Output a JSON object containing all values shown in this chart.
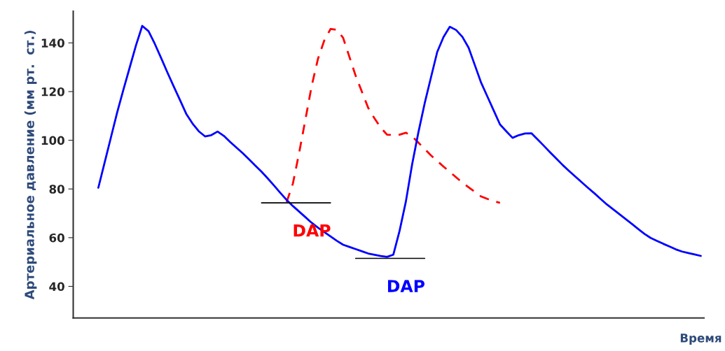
{
  "chart_data": {
    "type": "line",
    "xlabel": "Время",
    "ylabel": "Артериальное давление (мм рт.  ст.)",
    "categories": [
      null,
      null,
      null,
      null,
      null,
      null,
      null,
      null,
      null,
      null,
      null,
      null,
      null,
      null,
      null,
      null,
      null,
      null,
      null,
      null,
      null,
      null,
      null,
      null,
      null,
      null,
      null,
      null,
      null,
      null,
      null,
      null,
      null,
      null,
      null,
      null,
      null,
      null,
      null,
      null,
      null,
      null,
      null,
      null,
      null,
      null,
      null,
      null,
      null,
      null,
      null,
      null,
      null,
      null,
      null,
      null,
      null,
      null,
      null,
      null,
      null,
      null,
      null,
      null,
      null,
      null,
      null,
      null,
      null,
      null,
      null,
      null,
      null,
      null,
      null,
      null,
      null,
      null,
      null,
      null,
      null,
      null,
      null,
      null,
      null,
      null,
      null,
      null,
      null,
      null,
      null,
      null,
      null,
      null,
      null,
      null,
      null
    ],
    "ylim": [
      27,
      153
    ],
    "yticks": [
      40,
      60,
      80,
      100,
      120,
      140
    ],
    "tick_labels": "y",
    "grid": false,
    "legend": false,
    "series": [
      {
        "color": "#ff0000",
        "line_style": "dashed",
        "values": [
          null,
          null,
          null,
          null,
          null,
          null,
          null,
          null,
          null,
          null,
          null,
          null,
          null,
          null,
          null,
          null,
          null,
          null,
          null,
          null,
          null,
          null,
          null,
          null,
          null,
          null,
          null,
          null,
          null,
          null,
          74.6,
          82.2,
          94.9,
          108.6,
          122.4,
          133.5,
          141,
          145.7,
          145.4,
          142.1,
          134.3,
          126.5,
          119.9,
          113.3,
          109,
          105.2,
          102.3,
          102.2,
          102.3,
          103.1,
          101.6,
          99,
          96.4,
          93.8,
          91.5,
          89.2,
          87,
          84.8,
          82.6,
          80.7,
          78.8,
          76.9,
          75.9,
          75,
          74.3,
          null,
          null,
          null,
          null,
          null,
          null,
          null,
          null,
          null,
          null,
          null,
          null,
          null,
          null,
          null,
          null,
          null,
          null,
          null,
          null,
          null,
          null,
          null,
          null,
          null,
          null,
          null,
          null,
          null,
          null,
          null,
          null
        ]
      },
      {
        "color": "#0000ff",
        "line_style": "solid",
        "values": [
          80.5,
          90.8,
          101.1,
          111.4,
          120.8,
          129.9,
          139,
          147,
          144.8,
          139.6,
          133.8,
          127.9,
          122.2,
          116.6,
          110.9,
          106.9,
          103.7,
          101.6,
          102.1,
          103.6,
          101.8,
          99.3,
          97,
          94.7,
          92.2,
          89.6,
          87.1,
          84.3,
          81.4,
          78.4,
          75.5,
          73,
          70.7,
          68.4,
          66.1,
          64.1,
          62.3,
          60.5,
          58.7,
          57.1,
          56.2,
          55.3,
          54.4,
          53.5,
          53,
          52.5,
          52.1,
          53,
          62.8,
          74.8,
          90.1,
          103.3,
          115.2,
          125.8,
          136.3,
          142.4,
          146.6,
          145.3,
          142.5,
          138,
          130.8,
          123.6,
          117.9,
          112.2,
          106.5,
          103.7,
          101,
          102.1,
          102.8,
          102.9,
          100.3,
          97.7,
          95,
          92.4,
          89.8,
          87.4,
          85.1,
          82.8,
          80.5,
          78.3,
          76,
          73.7,
          71.7,
          69.7,
          67.7,
          65.7,
          63.6,
          61.6,
          59.9,
          58.7,
          57.5,
          56.4,
          55.2,
          54.3,
          53.7,
          53.1,
          52.5
        ]
      },
      {
        "color": "#000000",
        "line_style": "solid",
        "values": [
          null,
          null,
          null,
          null,
          null,
          null,
          null,
          null,
          null,
          null,
          null,
          null,
          null,
          null,
          null,
          null,
          null,
          null,
          null,
          null,
          null,
          null,
          null,
          null,
          null,
          null,
          74.3,
          74.3,
          74.3,
          74.3,
          74.3,
          74.3,
          74.3,
          74.3,
          74.3,
          74.3,
          74.3,
          74.3,
          null,
          null,
          null,
          null,
          null,
          null,
          null,
          null,
          null,
          null,
          null,
          null,
          null,
          null,
          null,
          null,
          null,
          null,
          null,
          null,
          null,
          null,
          null,
          null,
          null,
          null,
          null,
          null,
          null,
          null,
          null,
          null,
          null,
          null,
          null,
          null,
          null,
          null,
          null,
          null,
          null,
          null,
          null,
          null,
          null,
          null,
          null,
          null,
          null,
          null,
          null,
          null,
          null,
          null,
          null,
          null,
          null,
          null,
          null
        ]
      },
      {
        "color": "#000000",
        "line_style": "solid",
        "values": [
          null,
          null,
          null,
          null,
          null,
          null,
          null,
          null,
          null,
          null,
          null,
          null,
          null,
          null,
          null,
          null,
          null,
          null,
          null,
          null,
          null,
          null,
          null,
          null,
          null,
          null,
          null,
          null,
          null,
          null,
          null,
          null,
          null,
          null,
          null,
          null,
          null,
          null,
          null,
          null,
          null,
          51.5,
          51.5,
          51.5,
          51.5,
          51.5,
          51.5,
          51.5,
          51.5,
          51.5,
          51.5,
          51.5,
          51.5,
          null,
          null,
          null,
          null,
          null,
          null,
          null,
          null,
          null,
          null,
          null,
          null,
          null,
          null,
          null,
          null,
          null,
          null,
          null,
          null,
          null,
          null,
          null,
          null,
          null,
          null,
          null,
          null,
          null,
          null,
          null,
          null,
          null,
          null,
          null,
          null,
          null,
          null,
          null,
          null,
          null,
          null,
          null,
          null
        ]
      }
    ],
    "annotations": [
      "DAP",
      "DAP"
    ]
  }
}
